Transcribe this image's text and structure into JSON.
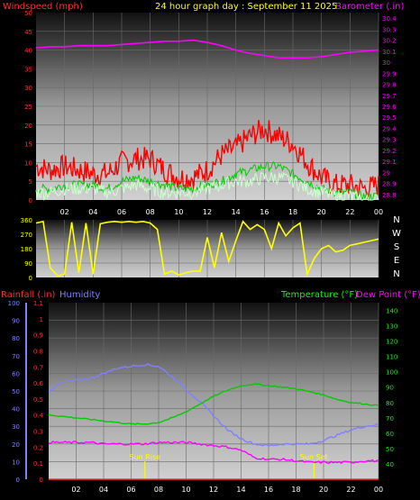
{
  "panel1": {
    "title": "24 hour graph day : September 11 2025",
    "left_label": "Windspeed (mph)",
    "right_label": "Barometer (.in)",
    "colors": {
      "left_label": "#ff3030",
      "title": "#ffff00",
      "right_label": "#ff00ff"
    }
  },
  "panel2": {
    "compass": [
      "N",
      "W",
      "S",
      "E",
      "N"
    ]
  },
  "panel3": {
    "left_label_1": "Rainfall (.in)",
    "left_label_2": "Humidity",
    "right_label_1": "Temperature (°F)",
    "right_label_2": "Dew Point (°F)",
    "colors": {
      "rain": "#ff3030",
      "humidity": "#8080ff",
      "temp": "#00ff00",
      "dew": "#ff00ff"
    },
    "sunrise_label": "Sun Rise",
    "sunset_label": "Sun Set",
    "sunrise_hour": 7.0,
    "sunset_hour": 19.3
  },
  "x_ticks": [
    "02",
    "04",
    "06",
    "08",
    "10",
    "12",
    "14",
    "16",
    "18",
    "20",
    "22",
    "00"
  ],
  "chart_data": [
    {
      "type": "line",
      "name": "wind-barometer",
      "y_left_ticks": [
        "0",
        "5",
        "10",
        "15",
        "20",
        "25",
        "30",
        "35",
        "40",
        "45",
        "50"
      ],
      "y_left_range": [
        0,
        50
      ],
      "y_right_ticks": [
        "28.8",
        "28.9",
        "29",
        "29.1",
        "29.2",
        "29.3",
        "29.4",
        "29.5",
        "29.6",
        "29.7",
        "29.8",
        "29.9",
        "30",
        "30.1",
        "30.2",
        "30.3",
        "30.4"
      ],
      "y_right_range": [
        28.75,
        30.45
      ],
      "series": [
        {
          "name": "Wind gust",
          "color": "#ff0000",
          "x": [
            0,
            1,
            2,
            3,
            4,
            5,
            6,
            7,
            8,
            9,
            10,
            11,
            12,
            13,
            14,
            15,
            16,
            17,
            18,
            19,
            20,
            21,
            22,
            23,
            24
          ],
          "values": [
            9,
            8,
            9,
            8,
            7,
            7,
            10,
            11,
            11,
            8,
            6,
            6,
            8,
            12,
            14,
            17,
            19,
            17,
            15,
            10,
            6,
            4,
            4,
            3,
            4
          ]
        },
        {
          "name": "Wind average",
          "color": "#00cc00",
          "x": [
            0,
            1,
            2,
            3,
            4,
            5,
            6,
            7,
            8,
            9,
            10,
            11,
            12,
            13,
            14,
            15,
            16,
            17,
            18,
            19,
            20,
            21,
            22,
            23,
            24
          ],
          "values": [
            3,
            3,
            4,
            4,
            4,
            3,
            5,
            6,
            5,
            4,
            3,
            3,
            4,
            5,
            7,
            8,
            9,
            9,
            7,
            5,
            3,
            2,
            2,
            1,
            1
          ]
        },
        {
          "name": "Wind speed",
          "color": "#ccffcc",
          "x": [
            0,
            1,
            2,
            3,
            4,
            5,
            6,
            7,
            8,
            9,
            10,
            11,
            12,
            13,
            14,
            15,
            16,
            17,
            18,
            19,
            20,
            21,
            22,
            23,
            24
          ],
          "values": [
            2,
            2,
            3,
            3,
            3,
            2,
            3,
            4,
            3,
            2,
            2,
            2,
            3,
            4,
            5,
            5,
            6,
            6,
            5,
            3,
            2,
            1,
            1,
            0,
            0
          ]
        },
        {
          "name": "Barometer",
          "color": "#ff00ff",
          "x": [
            0,
            1,
            2,
            3,
            4,
            5,
            6,
            7,
            8,
            9,
            10,
            11,
            12,
            13,
            14,
            15,
            16,
            17,
            18,
            19,
            20,
            21,
            22,
            23,
            24
          ],
          "values": [
            30.13,
            30.14,
            30.14,
            30.15,
            30.15,
            30.15,
            30.16,
            30.17,
            30.18,
            30.19,
            30.19,
            30.2,
            30.18,
            30.15,
            30.11,
            30.08,
            30.06,
            30.04,
            30.04,
            30.04,
            30.05,
            30.07,
            30.09,
            30.1,
            30.11
          ]
        }
      ]
    },
    {
      "type": "scatter",
      "name": "wind-direction",
      "y_ticks": [
        "0",
        "90",
        "180",
        "270",
        "360"
      ],
      "y_range": [
        0,
        360
      ],
      "series": [
        {
          "name": "Wind direction",
          "color": "#ffff00",
          "x": [
            0,
            0.5,
            1,
            1.5,
            2,
            2.5,
            3,
            3.5,
            4,
            4.5,
            5,
            5.5,
            6,
            6.5,
            7,
            7.5,
            8,
            8.5,
            9,
            9.5,
            10,
            10.5,
            11,
            11.5,
            12,
            12.5,
            13,
            13.5,
            14,
            14.5,
            15,
            15.5,
            16,
            16.5,
            17,
            17.5,
            18,
            18.5,
            19,
            19.5,
            20,
            20.5,
            21,
            21.5,
            22,
            22.5,
            23,
            23.5,
            24
          ],
          "values": [
            340,
            350,
            60,
            10,
            20,
            345,
            30,
            340,
            20,
            335,
            345,
            350,
            345,
            350,
            345,
            350,
            340,
            300,
            20,
            40,
            15,
            30,
            40,
            40,
            250,
            60,
            280,
            100,
            230,
            350,
            300,
            330,
            300,
            180,
            340,
            260,
            310,
            340,
            20,
            120,
            180,
            200,
            160,
            170,
            200,
            210,
            220,
            230,
            240
          ]
        }
      ]
    },
    {
      "type": "line",
      "name": "rain-humidity-temperature",
      "y_rain_ticks": [
        "0",
        "0.1",
        "0.2",
        "0.3",
        "0.4",
        "0.5",
        "0.6",
        "0.7",
        "0.8",
        "0.9",
        "1",
        "1.1"
      ],
      "y_rain_range": [
        0,
        1.1
      ],
      "y_humidity_ticks": [
        "0",
        "10",
        "20",
        "30",
        "40",
        "50",
        "60",
        "70",
        "80",
        "90",
        "100"
      ],
      "y_humidity_range": [
        0,
        100
      ],
      "y_temp_ticks": [
        "40",
        "50",
        "60",
        "70",
        "80",
        "90",
        "100",
        "110",
        "120",
        "130",
        "140"
      ],
      "y_temp_range": [
        30,
        145
      ],
      "series": [
        {
          "name": "Rainfall",
          "color": "#ff3030",
          "x": [
            0,
            24
          ],
          "values": [
            0,
            0
          ]
        },
        {
          "name": "Humidity",
          "color": "#8080ff",
          "x": [
            0,
            1,
            2,
            3,
            4,
            5,
            6,
            7,
            8,
            9,
            10,
            11,
            12,
            13,
            14,
            15,
            16,
            17,
            18,
            19,
            20,
            21,
            22,
            23,
            24
          ],
          "values": [
            50,
            55,
            56,
            57,
            60,
            63,
            64,
            65,
            64,
            58,
            51,
            44,
            36,
            28,
            23,
            20,
            19,
            20,
            20,
            20,
            22,
            25,
            28,
            30,
            31
          ]
        },
        {
          "name": "Temperature",
          "color": "#00cc00",
          "x": [
            0,
            1,
            2,
            3,
            4,
            5,
            6,
            7,
            8,
            9,
            10,
            11,
            12,
            13,
            14,
            15,
            16,
            17,
            18,
            19,
            20,
            21,
            22,
            23,
            24
          ],
          "values": [
            72,
            71,
            70,
            69,
            68,
            67,
            66,
            66,
            67,
            70,
            74,
            79,
            84,
            88,
            91,
            92,
            91,
            90,
            89,
            87,
            85,
            82,
            80,
            79,
            78
          ]
        },
        {
          "name": "Dew Point",
          "color": "#ff00ff",
          "x": [
            0,
            1,
            2,
            3,
            4,
            5,
            6,
            7,
            8,
            9,
            10,
            11,
            12,
            13,
            14,
            15,
            16,
            17,
            18,
            19,
            20,
            21,
            22,
            23,
            24
          ],
          "values": [
            54,
            54,
            54,
            54,
            53,
            53,
            53,
            53,
            54,
            54,
            54,
            53,
            52,
            51,
            49,
            44,
            43,
            43,
            42,
            41,
            41,
            41,
            41,
            42,
            42
          ]
        }
      ]
    }
  ]
}
